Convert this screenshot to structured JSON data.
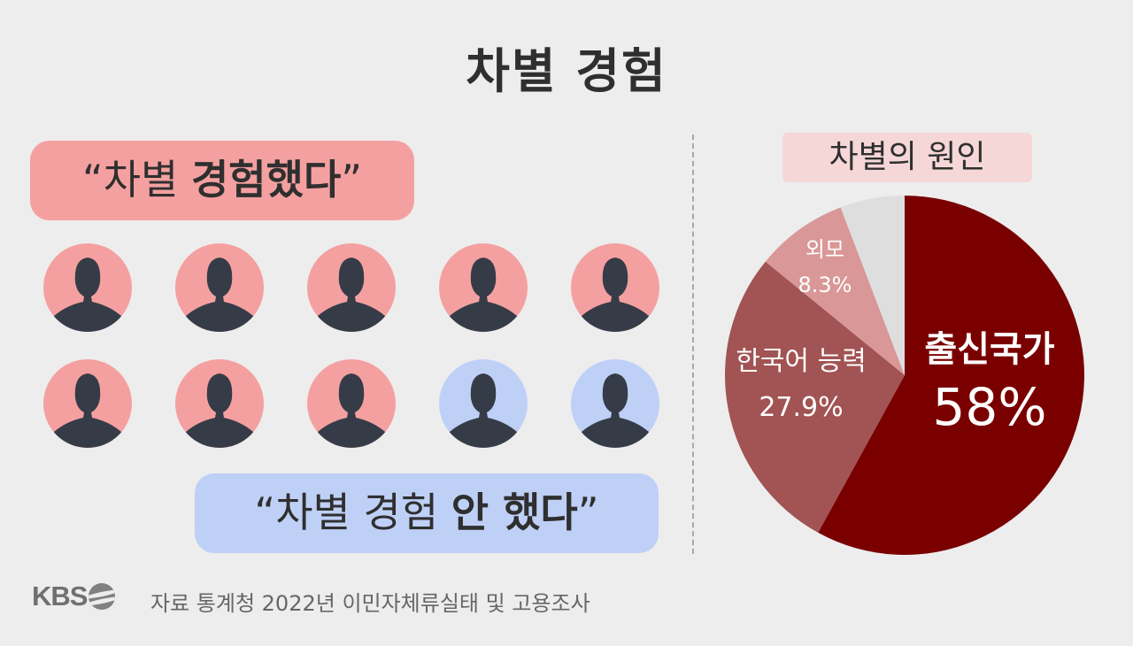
{
  "title": "차별 경험",
  "pill_experienced": {
    "open_quote": "“",
    "plain": "차별 ",
    "bold": "경험했다",
    "close_quote": "”"
  },
  "pill_not_experienced": {
    "open_quote": "“",
    "plain": "차별 경험 ",
    "bold": "안 했다",
    "close_quote": "”"
  },
  "people": {
    "total": 10,
    "experienced": 8,
    "colors": {
      "experienced": "#f5a0a0",
      "not_experienced": "#bfd0f7",
      "silhouette": "#363c47"
    }
  },
  "chart_data": {
    "type": "pie",
    "title": "차별의 원인",
    "unit": "%",
    "slices": [
      {
        "label": "출신국가",
        "value": 58,
        "display": "58%",
        "color": "#7a0000"
      },
      {
        "label": "한국어 능력",
        "value": 27.9,
        "display": "27.9%",
        "color": "#a25353"
      },
      {
        "label": "외모",
        "value": 8.3,
        "display": "8.3%",
        "color": "#d99797"
      },
      {
        "label": "",
        "value": 5.8,
        "display": "",
        "color": "#dedede"
      }
    ]
  },
  "source": "자료 통계청 2022년 이민자체류실태 및 고용조사",
  "logo": {
    "text": "KBS",
    "icon": "kbs-logo-icon"
  }
}
